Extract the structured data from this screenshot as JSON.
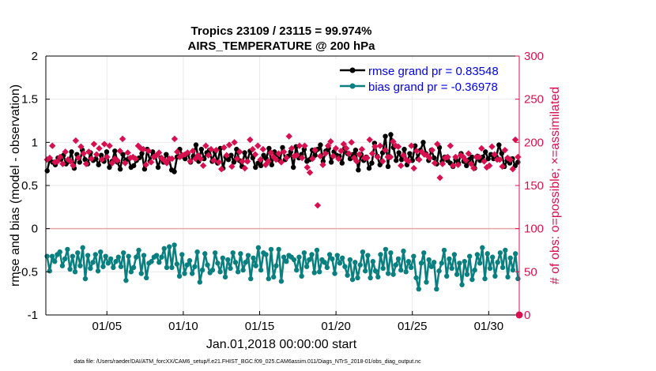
{
  "chart_data": {
    "type": "line",
    "title": "Tropics 23109 / 23115 = 99.974%",
    "subtitle": "AIRS_TEMPERATURE @ 200 hPa",
    "xlabel": "Jan.01,2018 00:00:00 start",
    "ylabel_left": "rmse and bias (model - observation)",
    "ylabel_right": "# of obs: o=possible; ×=assimilated",
    "ylim_left": [
      -1,
      2
    ],
    "ylim_right": [
      0,
      300
    ],
    "xlim": [
      1.0,
      32.0
    ],
    "x_tick_values": [
      5,
      10,
      15,
      20,
      25,
      30
    ],
    "x_tick_labels": [
      "01/05",
      "01/10",
      "01/15",
      "01/20",
      "01/25",
      "01/30"
    ],
    "y_left_ticks": [
      "-1",
      "-0.5",
      "0",
      "0.5",
      "1",
      "1.5",
      "2"
    ],
    "y_right_ticks": [
      "0",
      "50",
      "100",
      "150",
      "200",
      "250",
      "300"
    ],
    "zero_line": 0,
    "grid": true,
    "legend_position": "top-right",
    "series": [
      {
        "name": "rmse grand pr = 0.83548",
        "axis": "left",
        "color": "#000000",
        "marker": "circle",
        "values": [
          0.67,
          0.81,
          0.77,
          0.74,
          0.82,
          0.8,
          0.85,
          0.75,
          0.78,
          0.89,
          0.7,
          0.86,
          0.77,
          0.91,
          0.8,
          0.75,
          0.88,
          0.79,
          0.81,
          0.74,
          0.85,
          0.78,
          0.89,
          0.71,
          0.78,
          0.9,
          0.77,
          0.69,
          0.86,
          0.79,
          0.81,
          0.71,
          0.73,
          0.79,
          0.82,
          0.87,
          0.69,
          0.92,
          0.78,
          0.89,
          0.84,
          0.71,
          0.82,
          0.77,
          0.86,
          0.81,
          0.68,
          0.66,
          0.83,
          0.92,
          0.84,
          0.81,
          0.87,
          0.77,
          0.84,
          0.97,
          0.78,
          0.92,
          0.81,
          0.88,
          0.91,
          0.78,
          0.89,
          0.76,
          0.93,
          0.7,
          0.83,
          0.8,
          0.85,
          0.77,
          0.92,
          0.79,
          0.72,
          0.88,
          0.78,
          0.9,
          0.82,
          0.71,
          0.76,
          0.73,
          0.85,
          0.81,
          0.93,
          0.74,
          0.89,
          0.86,
          0.79,
          0.94,
          0.8,
          0.84,
          0.89,
          0.71,
          0.95,
          0.82,
          0.86,
          0.92,
          0.78,
          0.8,
          0.91,
          0.85,
          0.92,
          0.97,
          0.78,
          0.9,
          0.93,
          0.77,
          0.89,
          0.85,
          0.84,
          0.76,
          0.93,
          0.87,
          0.81,
          0.86,
          0.91,
          0.68,
          0.86,
          0.79,
          0.83,
          0.7,
          0.76,
          0.99,
          0.84,
          0.74,
          0.88,
          1.07,
          0.72,
          1.09,
          0.94,
          0.79,
          0.88,
          0.8,
          0.92,
          0.74,
          0.87,
          0.79,
          0.96,
          0.81,
          0.91,
          1.0,
          0.87,
          0.79,
          0.91,
          0.82,
          0.75,
          0.94,
          0.78,
          0.83,
          0.79,
          0.76,
          0.72,
          0.8,
          0.76,
          0.87,
          0.78,
          0.73,
          0.8,
          0.83,
          0.7,
          0.84,
          0.79,
          0.83,
          0.89,
          0.81,
          0.86,
          0.81,
          0.83,
          0.97,
          0.87,
          0.72,
          0.79,
          0.76,
          0.81,
          0.73,
          0.77
        ]
      },
      {
        "name": "bias grand pr = -0.36978",
        "axis": "left",
        "color": "#0a7f7f",
        "marker": "circle",
        "values": [
          -0.32,
          -0.49,
          -0.32,
          -0.38,
          -0.3,
          -0.27,
          -0.43,
          -0.35,
          -0.24,
          -0.47,
          -0.32,
          -0.5,
          -0.28,
          -0.43,
          -0.22,
          -0.58,
          -0.31,
          -0.46,
          -0.39,
          -0.3,
          -0.49,
          -0.27,
          -0.44,
          -0.32,
          -0.4,
          -0.35,
          -0.45,
          -0.38,
          -0.33,
          -0.44,
          -0.28,
          -0.6,
          -0.32,
          -0.5,
          -0.45,
          -0.33,
          -0.25,
          -0.52,
          -0.31,
          -0.57,
          -0.4,
          -0.38,
          -0.33,
          -0.31,
          -0.39,
          -0.33,
          -0.23,
          -0.45,
          -0.21,
          -0.45,
          -0.19,
          -0.41,
          -0.55,
          -0.3,
          -0.52,
          -0.42,
          -0.37,
          -0.52,
          -0.44,
          -0.27,
          -0.62,
          -0.48,
          -0.29,
          -0.42,
          -0.51,
          -0.48,
          -0.28,
          -0.4,
          -0.5,
          -0.34,
          -0.56,
          -0.36,
          -0.46,
          -0.28,
          -0.39,
          -0.5,
          -0.29,
          -0.48,
          -0.39,
          -0.31,
          -0.58,
          -0.34,
          -0.43,
          -0.22,
          -0.48,
          -0.28,
          -0.3,
          -0.58,
          -0.24,
          -0.56,
          -0.43,
          -0.24,
          -0.61,
          -0.33,
          -0.38,
          -0.31,
          -0.33,
          -0.36,
          -0.48,
          -0.33,
          -0.55,
          -0.28,
          -0.44,
          -0.36,
          -0.3,
          -0.51,
          -0.25,
          -0.5,
          -0.36,
          -0.39,
          -0.45,
          -0.3,
          -0.35,
          -0.52,
          -0.31,
          -0.4,
          -0.34,
          -0.44,
          -0.54,
          -0.36,
          -0.59,
          -0.39,
          -0.57,
          -0.42,
          -0.27,
          -0.49,
          -0.31,
          -0.57,
          -0.38,
          -0.49,
          -0.56,
          -0.3,
          -0.46,
          -0.24,
          -0.52,
          -0.28,
          -0.53,
          -0.42,
          -0.35,
          -0.48,
          -0.26,
          -0.5,
          -0.38,
          -0.45,
          -0.32,
          -0.57,
          -0.7,
          -0.4,
          -0.28,
          -0.62,
          -0.36,
          -0.44,
          -0.39,
          -0.7,
          -0.49,
          -0.4,
          -0.25,
          -0.55,
          -0.35,
          -0.46,
          -0.3,
          -0.53,
          -0.4,
          -0.65,
          -0.38,
          -0.53,
          -0.32,
          -0.59,
          -0.48,
          -0.3,
          -0.4,
          -0.22,
          -0.58,
          -0.29,
          -0.46,
          -0.33,
          -0.55,
          -0.39,
          -0.28,
          -0.45,
          -0.25,
          -0.56,
          -0.34,
          -0.48,
          -0.29,
          -0.58
        ]
      },
      {
        "name": "obs assimilated",
        "axis": "right",
        "color": "#d8104f",
        "marker": "x",
        "values": [
          180,
          182,
          196,
          177,
          178,
          183,
          175,
          189,
          180,
          178,
          173,
          202,
          182,
          195,
          187,
          175,
          189,
          181,
          198,
          186,
          193,
          180,
          198,
          183,
          196,
          176,
          181,
          179,
          190,
          204,
          176,
          188,
          182,
          183,
          181,
          196,
          193,
          192,
          174,
          190,
          177,
          183,
          185,
          188,
          182,
          179,
          176,
          181,
          181,
          204,
          189,
          183,
          185,
          186,
          188,
          178,
          190,
          181,
          185,
          181,
          173,
          196,
          185,
          192,
          179,
          191,
          177,
          169,
          194,
          185,
          197,
          172,
          200,
          181,
          189,
          178,
          170,
          178,
          203,
          192,
          186,
          196,
          180,
          192,
          174,
          178,
          188,
          183,
          180,
          187,
          177,
          189,
          182,
          207,
          193,
          184,
          185,
          196,
          182,
          196,
          171,
          165,
          181,
          191,
          127,
          184,
          174,
          187,
          196,
          201,
          184,
          193,
          181,
          190,
          198,
          193,
          187,
          200,
          182,
          178,
          186,
          192,
          182,
          182,
          203,
          187,
          195,
          183,
          196,
          178,
          191,
          183,
          183,
          201,
          196,
          195,
          173,
          185,
          180,
          178,
          196,
          170,
          190,
          180,
          189,
          186,
          185,
          182,
          191,
          176,
          198,
          159,
          175,
          182,
          183,
          196,
          173,
          183,
          174,
          185,
          183,
          179,
          187,
          175,
          170,
          183,
          183,
          193,
          178,
          171,
          173,
          195,
          186,
          180,
          180,
          172,
          191,
          182,
          180,
          169,
          203,
          183
        ]
      },
      {
        "name": "obs possible",
        "axis": "right",
        "color": "#d8104f",
        "marker": "open-circle",
        "values": [
          0
        ]
      }
    ],
    "legend": [
      "rmse grand pr = 0.83548",
      "bias grand pr = -0.36978"
    ]
  },
  "footnote": "data file: /Users/raeder/DAI/ATM_forcXX/CAM6_setup/f.e21.FHIST_BGC.f09_025.CAM6assim.011/Diags_NTrS_2018-01/obs_diag_output.nc",
  "colors": {
    "axis_left": "#000000",
    "axis_right": "#d8104f",
    "grid": "#e9e9e9",
    "zero_line": "#e6a6a6",
    "legend_text": "#0000ee"
  }
}
